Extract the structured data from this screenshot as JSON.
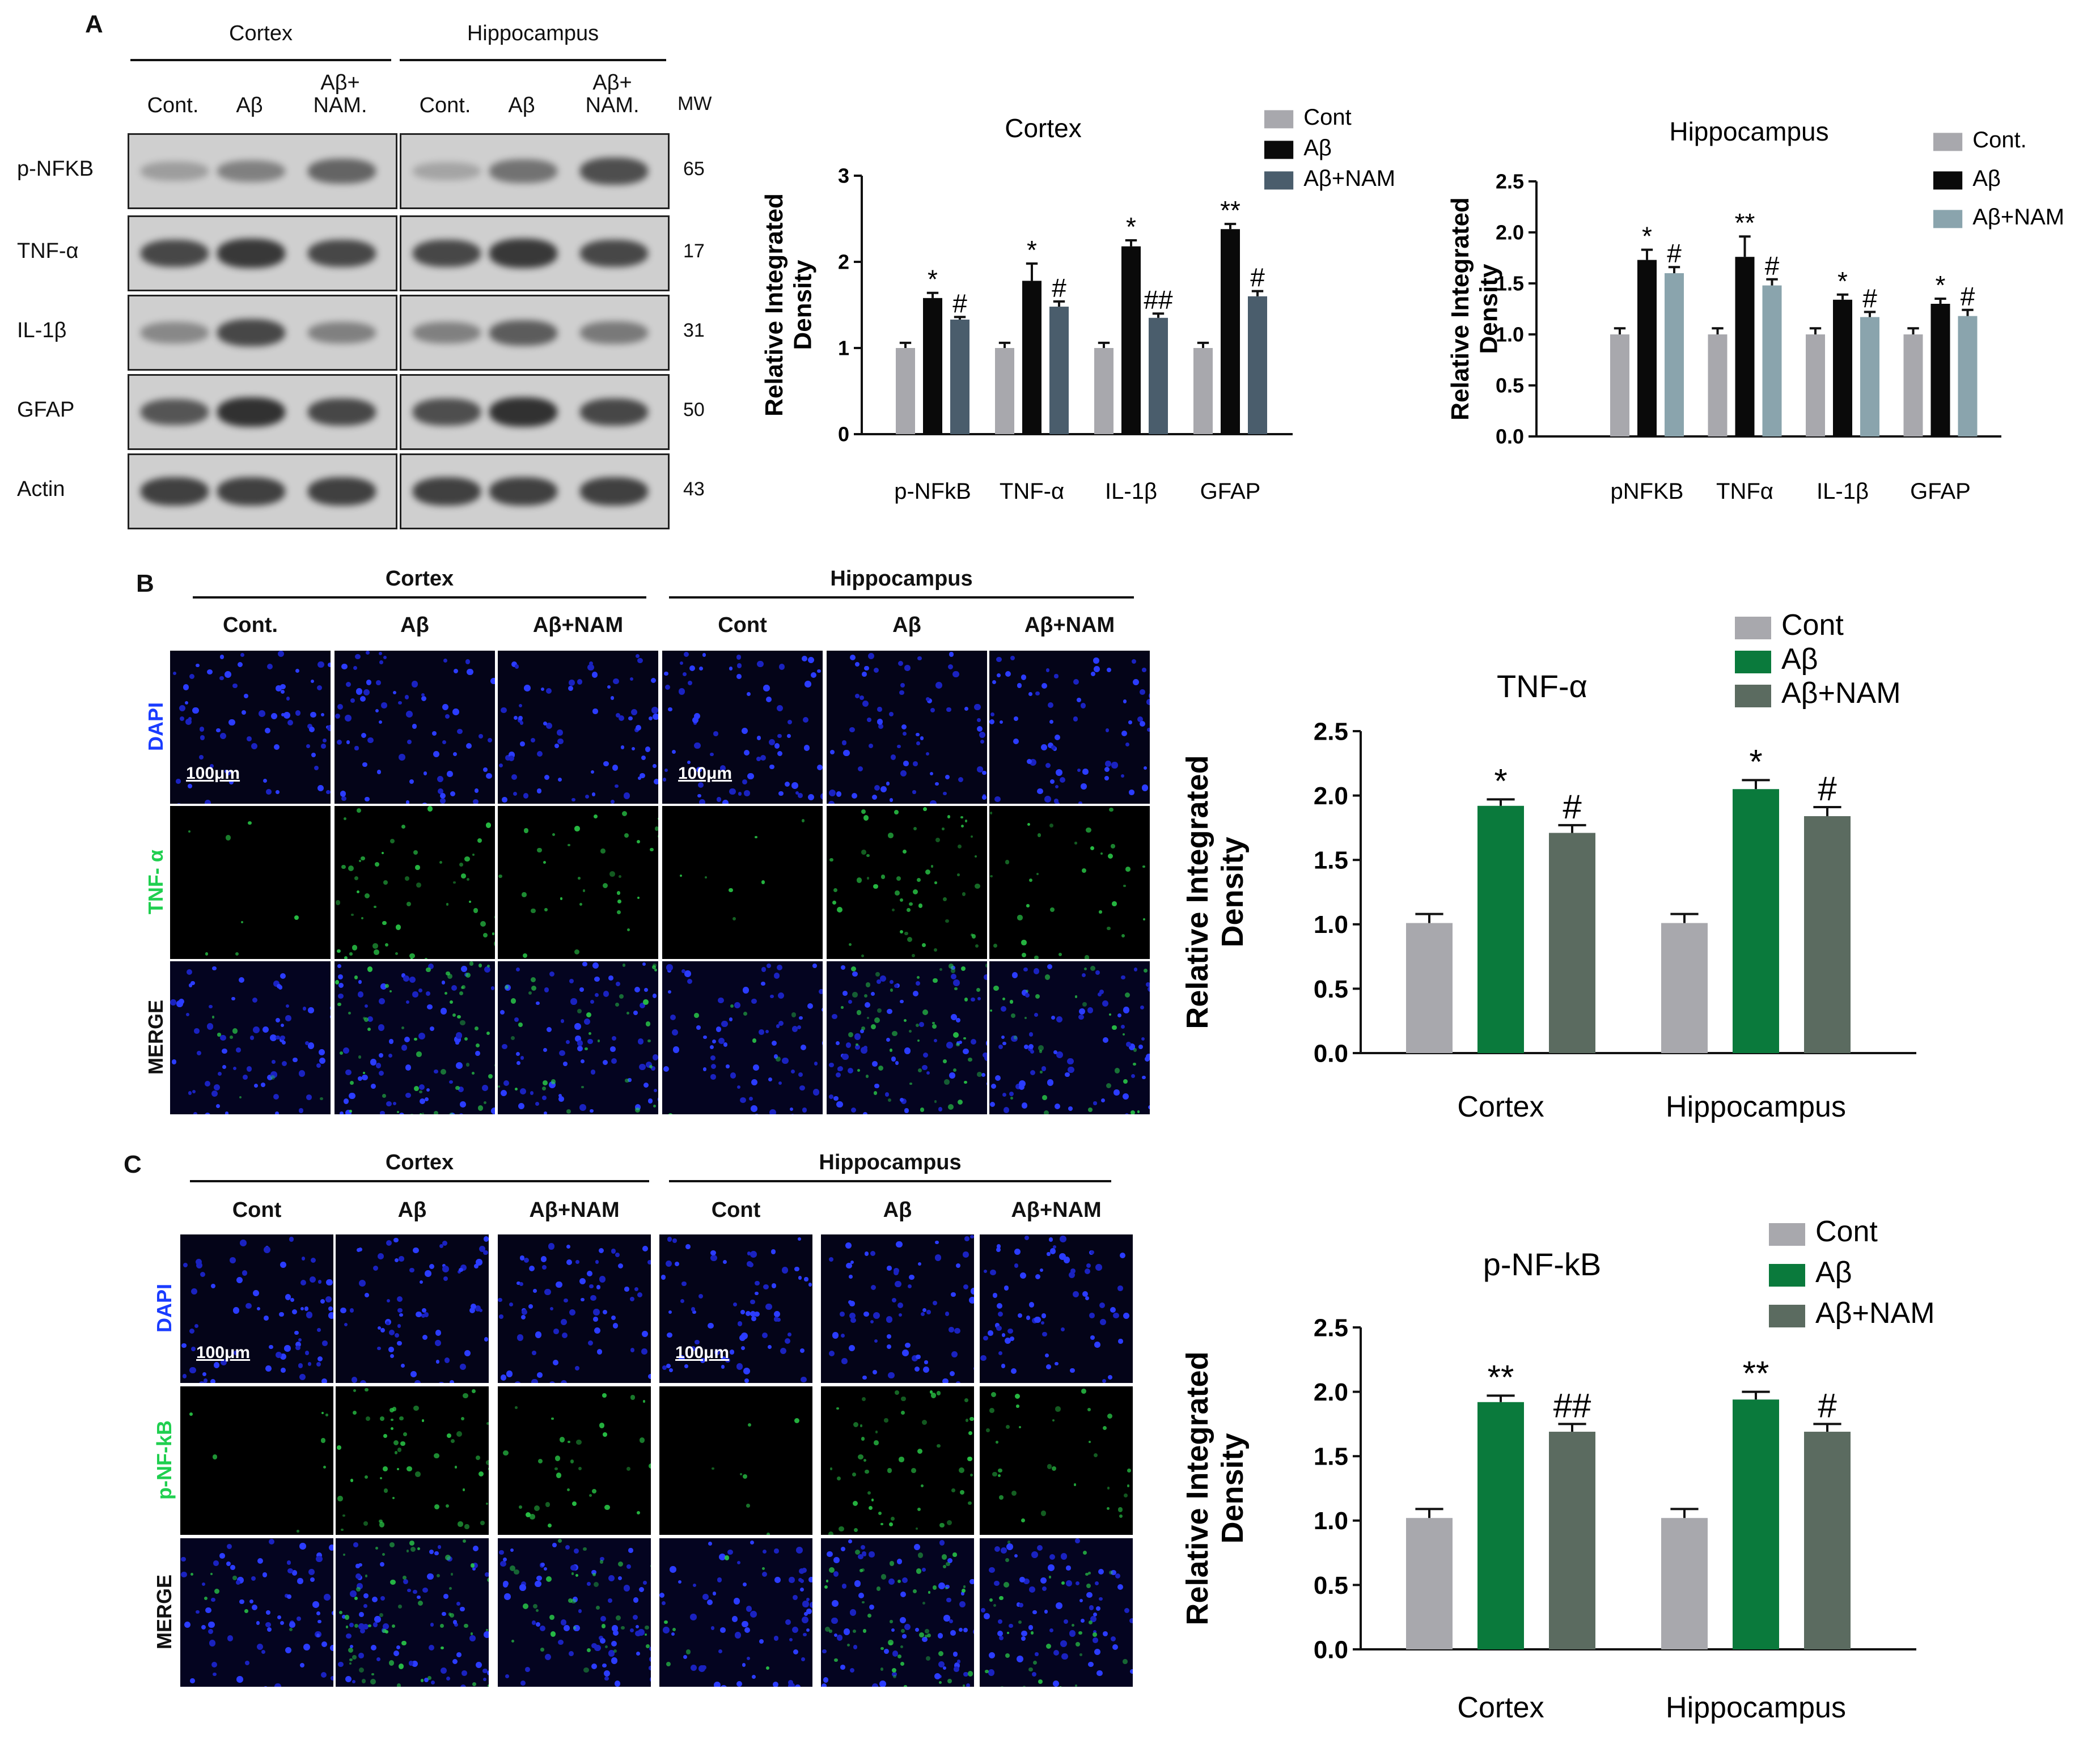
{
  "panels": {
    "a": "A",
    "b": "B",
    "c": "C"
  },
  "western": {
    "regions": [
      "Cortex",
      "Hippocampus"
    ],
    "lanes": [
      {
        "line1": "",
        "line2": "Cont."
      },
      {
        "line1": "",
        "line2": "Aβ"
      },
      {
        "line1": "Aβ+",
        "line2": "NAM."
      },
      {
        "line1": "",
        "line2": "Cont."
      },
      {
        "line1": "",
        "line2": "Aβ"
      },
      {
        "line1": "Aβ+",
        "line2": "NAM."
      }
    ],
    "mw_header": "MW",
    "rows": [
      {
        "protein": "p-NFKB",
        "mw": "65",
        "intensity": [
          0.15,
          0.35,
          0.55,
          0.1,
          0.45,
          0.7
        ]
      },
      {
        "protein": "TNF-α",
        "mw": "17",
        "intensity": [
          0.75,
          0.85,
          0.75,
          0.75,
          0.85,
          0.75
        ]
      },
      {
        "protein": "IL-1β",
        "mw": "31",
        "intensity": [
          0.3,
          0.75,
          0.35,
          0.35,
          0.6,
          0.4
        ]
      },
      {
        "protein": "GFAP",
        "mw": "50",
        "intensity": [
          0.65,
          0.9,
          0.75,
          0.7,
          0.9,
          0.75
        ]
      },
      {
        "protein": "Actin",
        "mw": "43",
        "intensity": [
          0.8,
          0.8,
          0.8,
          0.8,
          0.8,
          0.8
        ]
      }
    ]
  },
  "if_b": {
    "regions": [
      "Cortex",
      "Hippocampus"
    ],
    "columns": [
      "Cont.",
      "Aβ",
      "Aβ+NAM",
      "Cont",
      "Aβ",
      "Aβ+NAM"
    ],
    "rows": [
      "DAPI",
      "TNF- α",
      "MERGE"
    ],
    "scale_bar": "100μm"
  },
  "if_c": {
    "regions": [
      "Cortex",
      "Hippocampus"
    ],
    "columns": [
      "Cont",
      "Aβ",
      "Aβ+NAM",
      "Cont",
      "Aβ",
      "Aβ+NAM"
    ],
    "rows": [
      "DAPI",
      "p-NF-kB",
      "MERGE"
    ],
    "scale_bar": "100μm"
  },
  "colors": {
    "cont": "#a8a8ad",
    "abeta": "#0a0a0a",
    "nam_cortex": "#4a5d6c",
    "nam_hippo": "#8aa4ad",
    "green": "#0a7a3c",
    "darkgreen": "#5b6b60",
    "dapi": "#1a3cff",
    "tnf_label": "#1fcf4f"
  },
  "chart_data": [
    {
      "type": "bar",
      "title": "Cortex",
      "ylabel": "Relative Integrated Density",
      "ylim": [
        0,
        3
      ],
      "yticks": [
        "0",
        "1",
        "2",
        "3"
      ],
      "categories": [
        "p-NFkB",
        "TNF-α",
        "IL-1β",
        "GFAP"
      ],
      "series": [
        {
          "name": "Cont",
          "values": [
            1.0,
            1.0,
            1.0,
            1.0
          ],
          "errors": [
            0.06,
            0.06,
            0.06,
            0.06
          ],
          "marks": [
            "",
            "",
            "",
            ""
          ]
        },
        {
          "name": "Aβ",
          "values": [
            1.58,
            1.78,
            2.18,
            2.38
          ],
          "errors": [
            0.06,
            0.2,
            0.07,
            0.06
          ],
          "marks": [
            "*",
            "*",
            "*",
            "**"
          ]
        },
        {
          "name": "Aβ+NAM",
          "values": [
            1.33,
            1.48,
            1.35,
            1.6
          ],
          "errors": [
            0.03,
            0.06,
            0.05,
            0.06
          ],
          "marks": [
            "#",
            "#",
            "##",
            "#"
          ]
        }
      ]
    },
    {
      "type": "bar",
      "title": "Hippocampus",
      "ylabel": "Relative Integrated Density",
      "ylim": [
        0,
        2.5
      ],
      "yticks": [
        "0.0",
        "0.5",
        "1.0",
        "1.5",
        "2.0",
        "2.5"
      ],
      "categories": [
        "pNFKB",
        "TNFα",
        "IL-1β",
        "GFAP"
      ],
      "series": [
        {
          "name": "Cont.",
          "values": [
            1.0,
            1.0,
            1.0,
            1.0
          ],
          "errors": [
            0.06,
            0.06,
            0.06,
            0.06
          ],
          "marks": [
            "",
            "",
            "",
            ""
          ]
        },
        {
          "name": "Aβ",
          "values": [
            1.73,
            1.76,
            1.34,
            1.3
          ],
          "errors": [
            0.1,
            0.2,
            0.05,
            0.05
          ],
          "marks": [
            "*",
            "**",
            "*",
            "*"
          ]
        },
        {
          "name": "Aβ+NAM",
          "values": [
            1.6,
            1.48,
            1.17,
            1.18
          ],
          "errors": [
            0.06,
            0.06,
            0.05,
            0.06
          ],
          "marks": [
            "#",
            "#",
            "#",
            "#"
          ]
        }
      ]
    },
    {
      "type": "bar",
      "title": "TNF-α",
      "ylabel": "Relative Integrated Density",
      "ylim": [
        0,
        2.5
      ],
      "yticks": [
        "0.0",
        "0.5",
        "1.0",
        "1.5",
        "2.0",
        "2.5"
      ],
      "categories": [
        "Cortex",
        "Hippocampus"
      ],
      "series": [
        {
          "name": "Cont",
          "values": [
            1.01,
            1.01
          ],
          "errors": [
            0.07,
            0.07
          ],
          "marks": [
            "",
            ""
          ]
        },
        {
          "name": "Aβ",
          "values": [
            1.92,
            2.05
          ],
          "errors": [
            0.05,
            0.07
          ],
          "marks": [
            "*",
            "*"
          ]
        },
        {
          "name": "Aβ+NAM",
          "values": [
            1.71,
            1.84
          ],
          "errors": [
            0.06,
            0.07
          ],
          "marks": [
            "#",
            "#"
          ]
        }
      ]
    },
    {
      "type": "bar",
      "title": "p-NF-kB",
      "ylabel": "Relative Integrated Density",
      "ylim": [
        0,
        2.5
      ],
      "yticks": [
        "0.0",
        "0.5",
        "1.0",
        "1.5",
        "2.0",
        "2.5"
      ],
      "categories": [
        "Cortex",
        "Hippocampus"
      ],
      "series": [
        {
          "name": "Cont",
          "values": [
            1.02,
            1.02
          ],
          "errors": [
            0.07,
            0.07
          ],
          "marks": [
            "",
            ""
          ]
        },
        {
          "name": "Aβ",
          "values": [
            1.92,
            1.94
          ],
          "errors": [
            0.05,
            0.06
          ],
          "marks": [
            "**",
            "**"
          ]
        },
        {
          "name": "Aβ+NAM",
          "values": [
            1.69,
            1.69
          ],
          "errors": [
            0.06,
            0.06
          ],
          "marks": [
            "##",
            "#"
          ]
        }
      ]
    }
  ]
}
